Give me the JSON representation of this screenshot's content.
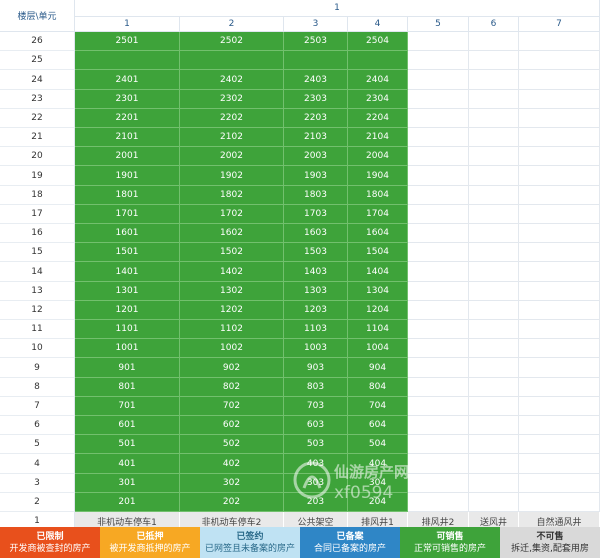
{
  "header": {
    "corner_label": "楼层\\单元",
    "building": "1",
    "units": [
      "1",
      "2",
      "3",
      "4",
      "5",
      "6",
      "7"
    ]
  },
  "rows": [
    {
      "floor": "26",
      "cells": [
        "2501",
        "2502",
        "2503",
        "2504",
        "",
        "",
        ""
      ]
    },
    {
      "floor": "25",
      "cells": [
        "",
        "",
        "",
        "",
        "",
        "",
        ""
      ]
    },
    {
      "floor": "24",
      "cells": [
        "2401",
        "2402",
        "2403",
        "2404",
        "",
        "",
        ""
      ]
    },
    {
      "floor": "23",
      "cells": [
        "2301",
        "2302",
        "2303",
        "2304",
        "",
        "",
        ""
      ]
    },
    {
      "floor": "22",
      "cells": [
        "2201",
        "2202",
        "2203",
        "2204",
        "",
        "",
        ""
      ]
    },
    {
      "floor": "21",
      "cells": [
        "2101",
        "2102",
        "2103",
        "2104",
        "",
        "",
        ""
      ]
    },
    {
      "floor": "20",
      "cells": [
        "2001",
        "2002",
        "2003",
        "2004",
        "",
        "",
        ""
      ]
    },
    {
      "floor": "19",
      "cells": [
        "1901",
        "1902",
        "1903",
        "1904",
        "",
        "",
        ""
      ]
    },
    {
      "floor": "18",
      "cells": [
        "1801",
        "1802",
        "1803",
        "1804",
        "",
        "",
        ""
      ]
    },
    {
      "floor": "17",
      "cells": [
        "1701",
        "1702",
        "1703",
        "1704",
        "",
        "",
        ""
      ]
    },
    {
      "floor": "16",
      "cells": [
        "1601",
        "1602",
        "1603",
        "1604",
        "",
        "",
        ""
      ]
    },
    {
      "floor": "15",
      "cells": [
        "1501",
        "1502",
        "1503",
        "1504",
        "",
        "",
        ""
      ]
    },
    {
      "floor": "14",
      "cells": [
        "1401",
        "1402",
        "1403",
        "1404",
        "",
        "",
        ""
      ]
    },
    {
      "floor": "13",
      "cells": [
        "1301",
        "1302",
        "1303",
        "1304",
        "",
        "",
        ""
      ]
    },
    {
      "floor": "12",
      "cells": [
        "1201",
        "1202",
        "1203",
        "1204",
        "",
        "",
        ""
      ]
    },
    {
      "floor": "11",
      "cells": [
        "1101",
        "1102",
        "1103",
        "1104",
        "",
        "",
        ""
      ]
    },
    {
      "floor": "10",
      "cells": [
        "1001",
        "1002",
        "1003",
        "1004",
        "",
        "",
        ""
      ]
    },
    {
      "floor": "9",
      "cells": [
        "901",
        "902",
        "903",
        "904",
        "",
        "",
        ""
      ]
    },
    {
      "floor": "8",
      "cells": [
        "801",
        "802",
        "803",
        "804",
        "",
        "",
        ""
      ]
    },
    {
      "floor": "7",
      "cells": [
        "701",
        "702",
        "703",
        "704",
        "",
        "",
        ""
      ]
    },
    {
      "floor": "6",
      "cells": [
        "601",
        "602",
        "603",
        "604",
        "",
        "",
        ""
      ]
    },
    {
      "floor": "5",
      "cells": [
        "501",
        "502",
        "503",
        "504",
        "",
        "",
        ""
      ]
    },
    {
      "floor": "4",
      "cells": [
        "401",
        "402",
        "403",
        "404",
        "",
        "",
        ""
      ]
    },
    {
      "floor": "3",
      "cells": [
        "301",
        "302",
        "303",
        "304",
        "",
        "",
        ""
      ]
    },
    {
      "floor": "2",
      "cells": [
        "201",
        "202",
        "203",
        "204",
        "",
        "",
        ""
      ]
    },
    {
      "floor": "1",
      "cells": [
        "非机动车停车1",
        "非机动车停车2",
        "公共架空",
        "排风井1",
        "排风井2",
        "送风井",
        "自然通风井"
      ]
    }
  ],
  "legend": [
    {
      "title": "已限制",
      "desc": "开发商被查封的房产",
      "bg": "#e8501c",
      "fg": "#ffffff"
    },
    {
      "title": "已抵押",
      "desc": "被开发商抵押的房产",
      "bg": "#f7a823",
      "fg": "#ffffff"
    },
    {
      "title": "已签约",
      "desc": "已网签且未备案的房产",
      "bg": "#bfe2f3",
      "fg": "#2a6a8a"
    },
    {
      "title": "已备案",
      "desc": "合同已备案的房产",
      "bg": "#2f86c6",
      "fg": "#ffffff"
    },
    {
      "title": "可销售",
      "desc": "正常可销售的房产",
      "bg": "#3ea33a",
      "fg": "#ffffff"
    },
    {
      "title": "不可售",
      "desc": "拆迁,集资,配套用房",
      "bg": "#d9d9d9",
      "fg": "#333333"
    }
  ],
  "watermark": {
    "line1": "仙游房产网",
    "line2": "xf0594"
  },
  "colors": {
    "available": "#3ea33a",
    "header_text": "#2a5a8a",
    "unit_label_bg": "#e9e9e9"
  }
}
